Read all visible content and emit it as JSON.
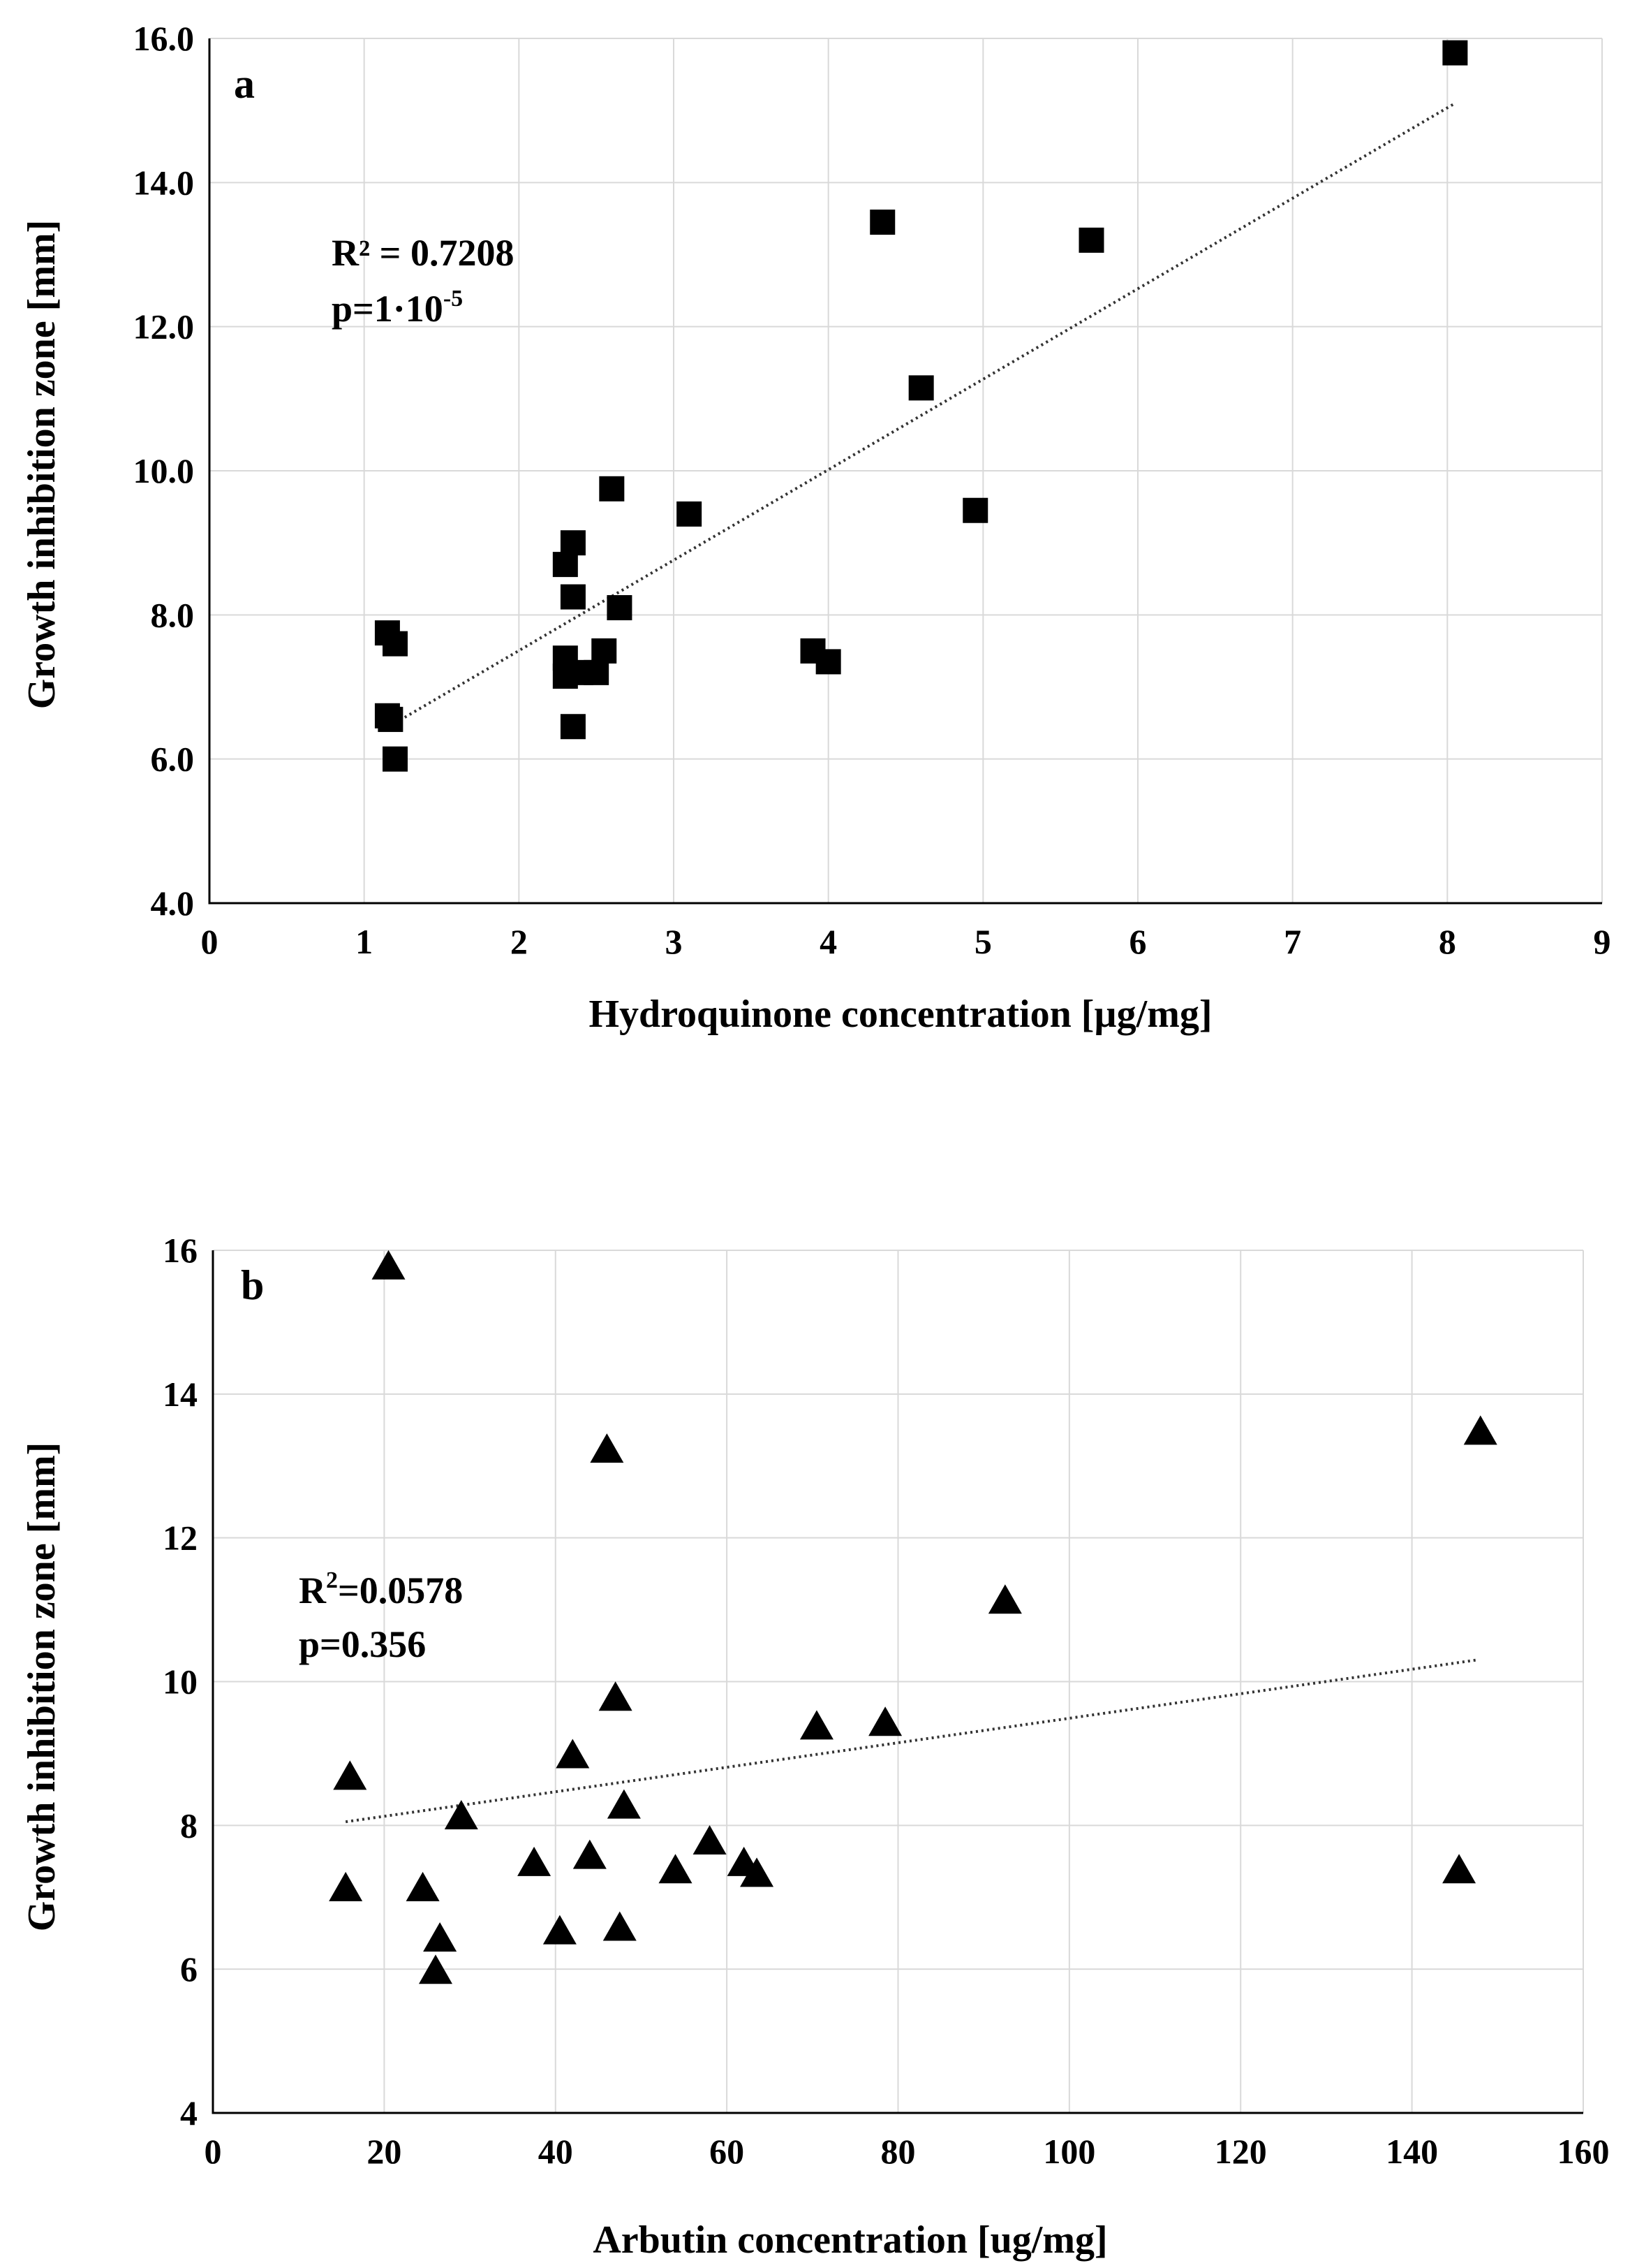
{
  "chart_data": [
    {
      "type": "scatter",
      "panel_label": "a",
      "xlabel": "Hydroquinone concentration [µg/mg]",
      "ylabel": "Growth inhibition zone [mm]",
      "xlim": [
        0,
        9
      ],
      "ylim": [
        4,
        16
      ],
      "xticks": [
        "0",
        "1",
        "2",
        "3",
        "4",
        "5",
        "6",
        "7",
        "8",
        "9"
      ],
      "yticks": [
        "4.0",
        "6.0",
        "8.0",
        "10.0",
        "12.0",
        "14.0",
        "16.0"
      ],
      "marker": "square",
      "grid": true,
      "annotation": {
        "r2_text": "R² = 0.7208",
        "p_text_base": "p=1·10",
        "p_text_exp": "-5"
      },
      "trendline": {
        "x": [
          1.2,
          8.05
        ],
        "y": [
          6.5,
          15.1
        ]
      },
      "points": [
        {
          "x": 1.15,
          "y": 7.75
        },
        {
          "x": 1.2,
          "y": 7.6
        },
        {
          "x": 1.15,
          "y": 6.6
        },
        {
          "x": 1.17,
          "y": 6.55
        },
        {
          "x": 1.2,
          "y": 6.0
        },
        {
          "x": 2.3,
          "y": 8.7
        },
        {
          "x": 2.35,
          "y": 9.0
        },
        {
          "x": 2.35,
          "y": 8.25
        },
        {
          "x": 2.3,
          "y": 7.4
        },
        {
          "x": 2.3,
          "y": 7.15
        },
        {
          "x": 2.4,
          "y": 7.2
        },
        {
          "x": 2.35,
          "y": 6.45
        },
        {
          "x": 2.5,
          "y": 7.2
        },
        {
          "x": 2.55,
          "y": 7.5
        },
        {
          "x": 2.6,
          "y": 9.75
        },
        {
          "x": 2.65,
          "y": 8.1
        },
        {
          "x": 3.1,
          "y": 9.4
        },
        {
          "x": 3.9,
          "y": 7.5
        },
        {
          "x": 4.0,
          "y": 7.35
        },
        {
          "x": 4.35,
          "y": 13.45
        },
        {
          "x": 4.6,
          "y": 11.15
        },
        {
          "x": 4.95,
          "y": 9.45
        },
        {
          "x": 5.7,
          "y": 13.2
        },
        {
          "x": 8.05,
          "y": 15.8
        }
      ]
    },
    {
      "type": "scatter",
      "panel_label": "b",
      "xlabel": "Arbutin concentration [ug/mg]",
      "ylabel": "Growth inhibition zone [mm]",
      "xlim": [
        0,
        160
      ],
      "ylim": [
        4,
        16
      ],
      "xticks": [
        "0",
        "20",
        "40",
        "60",
        "80",
        "100",
        "120",
        "140",
        "160"
      ],
      "yticks": [
        "4",
        "6",
        "8",
        "10",
        "12",
        "14",
        "16"
      ],
      "marker": "triangle",
      "grid": true,
      "annotation": {
        "r2_base": "R",
        "r2_exp": "2",
        "r2_value": "=0.0578",
        "p_text": "p=0.356"
      },
      "trendline": {
        "x": [
          15.5,
          147.5
        ],
        "y": [
          8.05,
          10.3
        ]
      },
      "points": [
        {
          "x": 20.5,
          "y": 15.75
        },
        {
          "x": 16,
          "y": 8.65
        },
        {
          "x": 15.5,
          "y": 7.1
        },
        {
          "x": 24.5,
          "y": 7.1
        },
        {
          "x": 26.5,
          "y": 6.4
        },
        {
          "x": 26,
          "y": 5.95
        },
        {
          "x": 29,
          "y": 8.1
        },
        {
          "x": 37.5,
          "y": 7.45
        },
        {
          "x": 40.5,
          "y": 6.5
        },
        {
          "x": 42,
          "y": 8.95
        },
        {
          "x": 44,
          "y": 7.55
        },
        {
          "x": 46,
          "y": 13.2
        },
        {
          "x": 47,
          "y": 9.75
        },
        {
          "x": 47.5,
          "y": 6.55
        },
        {
          "x": 48,
          "y": 8.25
        },
        {
          "x": 54,
          "y": 7.35
        },
        {
          "x": 58,
          "y": 7.75
        },
        {
          "x": 62,
          "y": 7.45
        },
        {
          "x": 63.5,
          "y": 7.3
        },
        {
          "x": 70.5,
          "y": 9.35
        },
        {
          "x": 78.5,
          "y": 9.4
        },
        {
          "x": 92.5,
          "y": 11.1
        },
        {
          "x": 145.5,
          "y": 7.35
        },
        {
          "x": 148,
          "y": 13.45
        }
      ]
    }
  ]
}
